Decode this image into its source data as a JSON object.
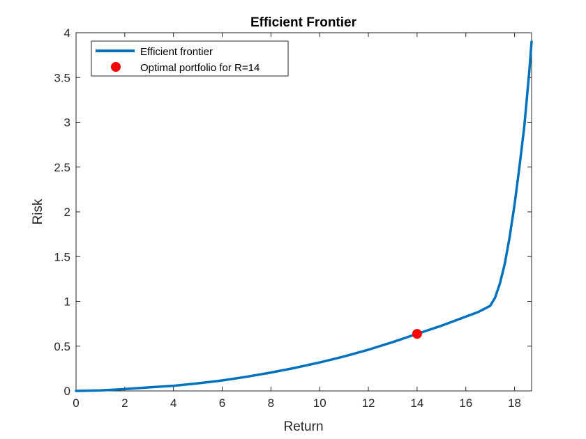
{
  "chart_data": {
    "type": "line",
    "title": "Efficient Frontier",
    "xlabel": "Return",
    "ylabel": "Risk",
    "xlim": [
      0,
      18.7
    ],
    "ylim": [
      0,
      4
    ],
    "xticks": [
      0,
      2,
      4,
      6,
      8,
      10,
      12,
      14,
      16,
      18
    ],
    "yticks": [
      0,
      0.5,
      1,
      1.5,
      2,
      2.5,
      3,
      3.5,
      4
    ],
    "grid": false,
    "legend_location": "top-left",
    "series": [
      {
        "name": "Efficient frontier",
        "color": "#0072BD",
        "x": [
          0,
          1,
          2,
          3,
          4,
          5,
          6,
          7,
          8,
          9,
          10,
          11,
          12,
          13,
          14,
          15,
          16,
          16.5,
          17,
          17.2,
          17.4,
          17.6,
          17.8,
          18,
          18.2,
          18.4,
          18.6,
          18.7
        ],
        "y": [
          0,
          0.006,
          0.02,
          0.04,
          0.057,
          0.085,
          0.117,
          0.158,
          0.205,
          0.258,
          0.318,
          0.385,
          0.46,
          0.545,
          0.637,
          0.728,
          0.83,
          0.88,
          0.95,
          1.04,
          1.2,
          1.42,
          1.72,
          2.08,
          2.5,
          2.95,
          3.55,
          3.9
        ]
      }
    ],
    "markers": [
      {
        "name": "Optimal portfolio for R=14",
        "color": "#FF0000",
        "x": 14,
        "y": 0.637
      }
    ]
  }
}
